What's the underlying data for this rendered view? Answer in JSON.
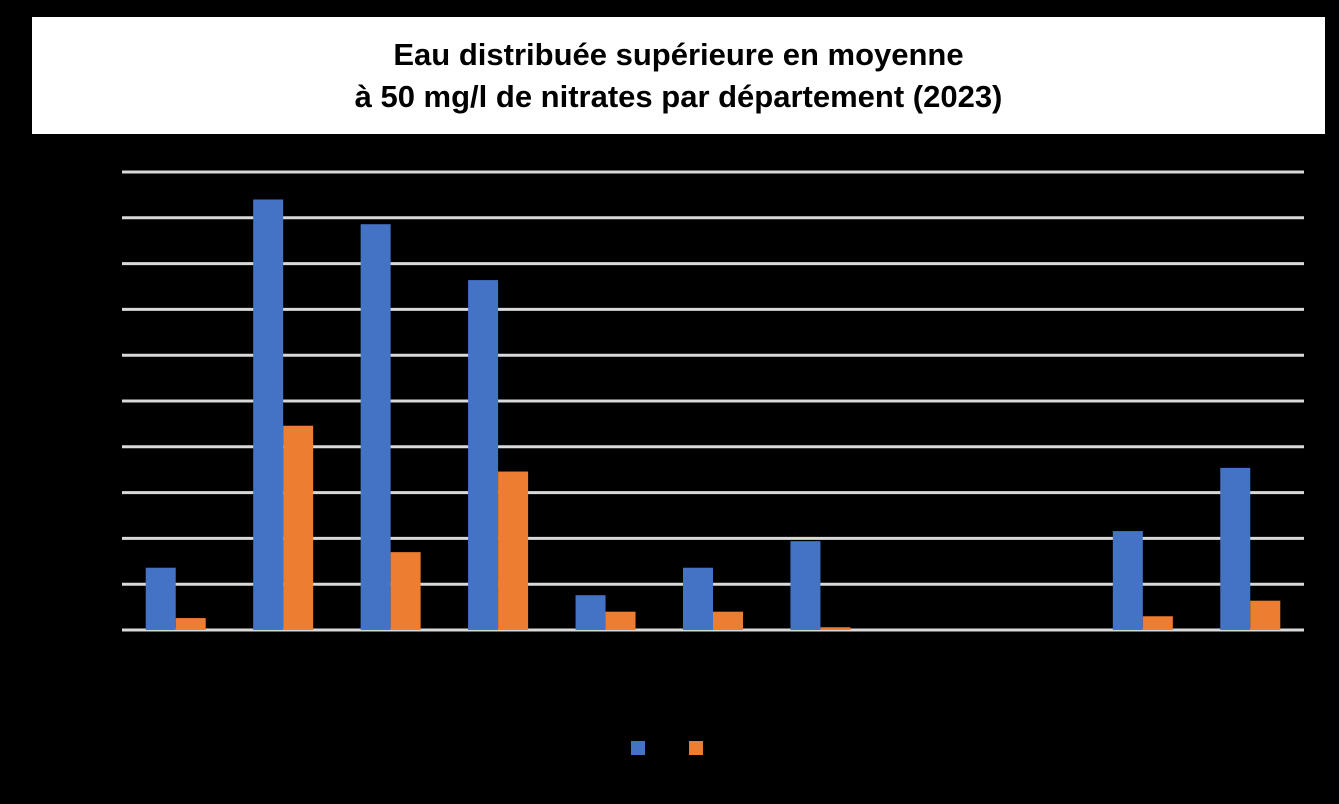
{
  "chart_data": {
    "type": "bar",
    "title_lines": [
      "Eau distribuée supérieure en moyenne",
      "à 50 mg/l de nitrates par département (2023)"
    ],
    "categories": [
      "",
      "",
      "",
      "",
      "",
      "",
      "",
      "",
      "",
      "",
      ""
    ],
    "series": [
      {
        "name": "",
        "color": "#4472C4",
        "values": [
          0.68,
          4.7,
          4.43,
          3.82,
          0.38,
          0.68,
          0.97,
          0,
          0,
          1.08,
          1.77
        ]
      },
      {
        "name": "",
        "color": "#ED7D31",
        "values": [
          0.13,
          2.23,
          0.85,
          1.73,
          0.2,
          0.2,
          0.03,
          0,
          0,
          0.15,
          0.32
        ]
      }
    ],
    "yticks": [
      "",
      "",
      "",
      "",
      "",
      "",
      "",
      "",
      "",
      "",
      ""
    ],
    "ylim": [
      0,
      5
    ],
    "grid": true,
    "legend_position": "bottom",
    "background_color": "#000000",
    "gridline_color": "#d9d9d9"
  }
}
